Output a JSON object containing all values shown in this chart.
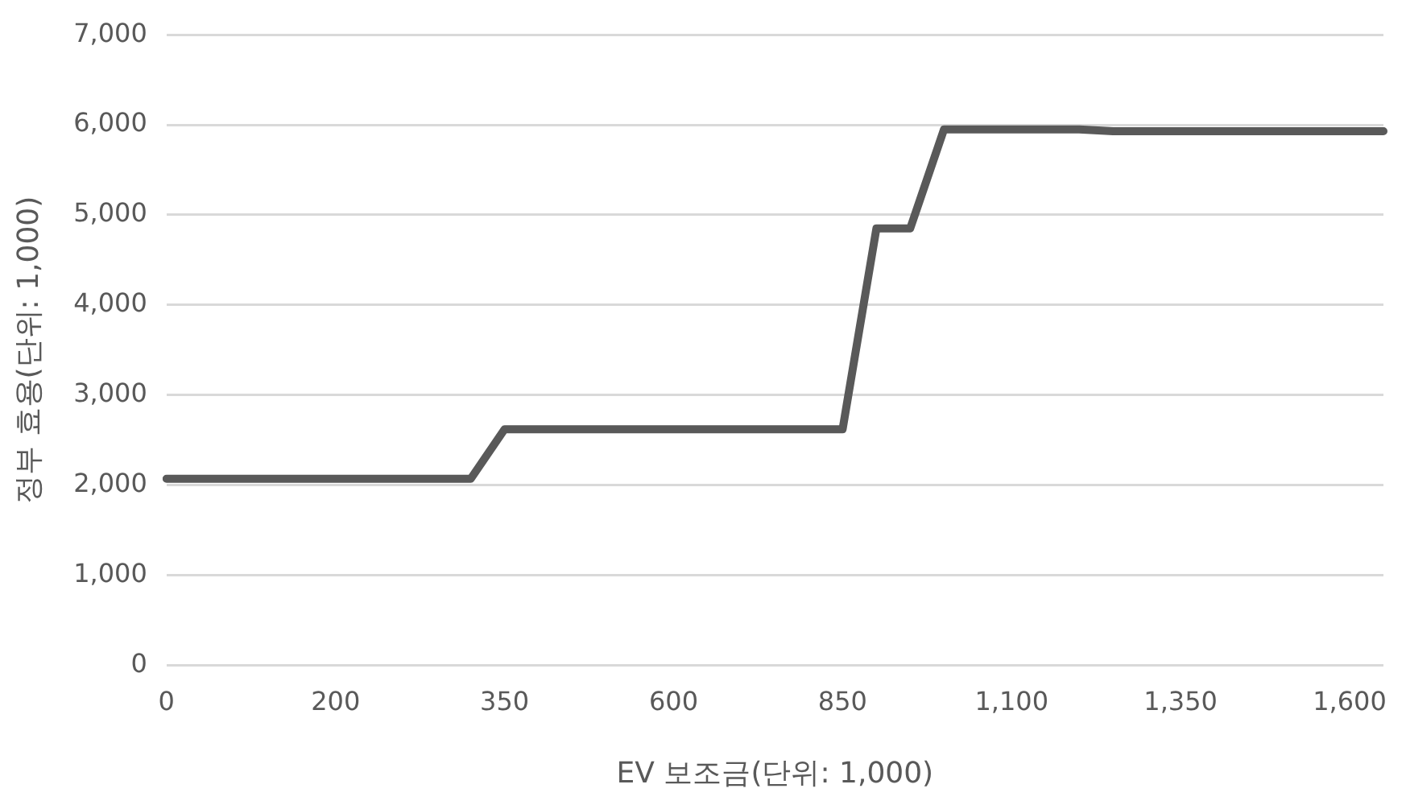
{
  "chart_data": {
    "type": "line",
    "xlabel": "EV 보조금(단위: 1,000)",
    "ylabel": "정부 효용(단위: 1,000)",
    "categories": [
      "0",
      null,
      null,
      null,
      null,
      "200",
      null,
      null,
      null,
      null,
      "350",
      null,
      null,
      null,
      null,
      "600",
      null,
      null,
      null,
      null,
      "850",
      null,
      null,
      null,
      null,
      "1,100",
      null,
      null,
      null,
      null,
      "1,350",
      null,
      null,
      null,
      null,
      "1,600",
      null
    ],
    "series": [
      {
        "color": "#595959",
        "values": [
          2070,
          2070,
          2070,
          2070,
          2070,
          2070,
          2070,
          2070,
          2070,
          2070,
          2620,
          2620,
          2620,
          2620,
          2620,
          2620,
          2620,
          2620,
          2620,
          2620,
          2620,
          4850,
          4850,
          5950,
          5950,
          5950,
          5950,
          5950,
          5930,
          5930,
          5930,
          5930,
          5930,
          5930,
          5930,
          5930,
          5930
        ]
      }
    ],
    "ylim": [
      0,
      7000
    ],
    "yticks": [
      {
        "value": 0,
        "label": "0"
      },
      {
        "value": 1000,
        "label": "1,000"
      },
      {
        "value": 2000,
        "label": "2,000"
      },
      {
        "value": 3000,
        "label": "3,000"
      },
      {
        "value": 4000,
        "label": "4,000"
      },
      {
        "value": 5000,
        "label": "5,000"
      },
      {
        "value": 6000,
        "label": "6,000"
      },
      {
        "value": 7000,
        "label": "7,000"
      }
    ],
    "grid": "y",
    "legend": false,
    "marker": "none",
    "line_style": "solid"
  }
}
